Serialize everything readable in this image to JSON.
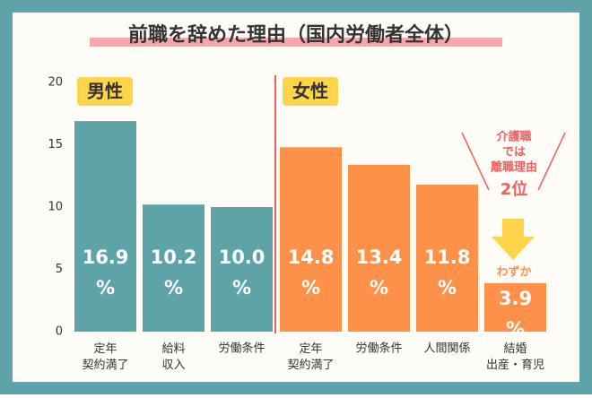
{
  "chart_data": {
    "type": "bar",
    "title": "前職を辞めた理由（国内労働者全体）",
    "ylim": [
      0,
      20
    ],
    "yticks": [
      0,
      5,
      10,
      15,
      20
    ],
    "series": [
      {
        "name": "男性",
        "color": "#5ea3a8",
        "categories": [
          "定年\n契約満了",
          "給料\n収入",
          "労働条件"
        ],
        "values": [
          16.9,
          10.2,
          10.0
        ],
        "value_labels": [
          "16.9\n%",
          "10.2\n%",
          "10.0\n%"
        ]
      },
      {
        "name": "女性",
        "color": "#fe914a",
        "categories": [
          "定年\n契約満了",
          "労働条件",
          "人間関係",
          "結婚\n出産・育児"
        ],
        "values": [
          14.8,
          13.4,
          11.8,
          3.9
        ],
        "value_labels": [
          "14.8\n%",
          "13.4\n%",
          "11.8\n%",
          "3.9\n%"
        ]
      }
    ],
    "annotation": [
      "介護職",
      "では",
      "離職理由",
      "2位"
    ],
    "small_note": "わずか"
  }
}
